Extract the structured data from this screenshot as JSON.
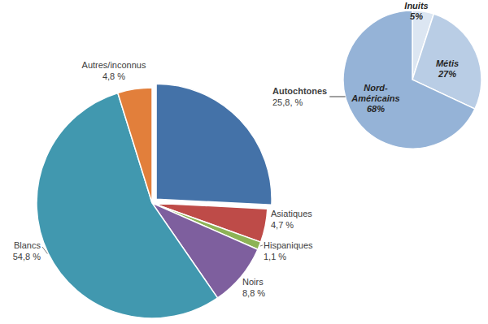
{
  "chart_data": [
    {
      "type": "pie",
      "categories": [
        "Autochtones",
        "Asiatiques",
        "Hispaniques",
        "Noirs",
        "Blancs",
        "Autres/inconnus"
      ],
      "values": [
        25.8,
        4.7,
        1.1,
        8.8,
        54.8,
        4.8
      ],
      "value_labels": [
        "25,8, %",
        "4,7 %",
        "1,1 %",
        "8,8 %",
        "54,8 %",
        "4,8 %"
      ],
      "colors": [
        "#4472a8",
        "#be4b48",
        "#8db356",
        "#7e5f9e",
        "#4198af",
        "#e27f3b"
      ],
      "data_labels": true
    },
    {
      "type": "pie",
      "categories": [
        "Inuits",
        "Métis",
        "Nord-Américains"
      ],
      "values": [
        5,
        27,
        68
      ],
      "value_labels": [
        "5%",
        "27%",
        "68%"
      ],
      "colors": [
        "#dce6f2",
        "#b9cde5",
        "#95b3d7"
      ],
      "data_labels": true
    }
  ]
}
